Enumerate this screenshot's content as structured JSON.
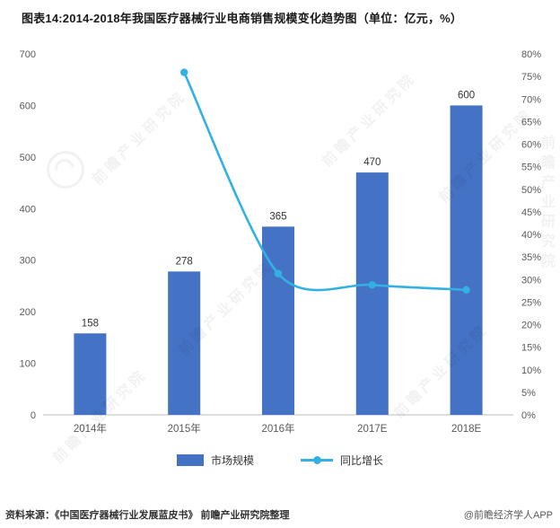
{
  "title": "图表14:2014-2018年我国医疗器械行业电商销售规模变化趋势图（单位：亿元，%）",
  "watermark": {
    "text": "前瞻产业研究院"
  },
  "footer": {
    "source": "资料来源：《中国医疗器械行业发展蓝皮书》  前瞻产业研究院整理",
    "credit": "@前瞻经济学人APP"
  },
  "chart_data": {
    "type": "bar+line combo",
    "categories": [
      "2014年",
      "2015年",
      "2016年",
      "2017E",
      "2018E"
    ],
    "series": [
      {
        "name": "市场规模",
        "type": "bar",
        "axis": "left",
        "unit": "亿元",
        "values": [
          158,
          278,
          365,
          470,
          600
        ],
        "color": "#4472C4"
      },
      {
        "name": "同比增长",
        "type": "line",
        "axis": "right",
        "unit": "%",
        "values": [
          null,
          75.9,
          31.3,
          28.8,
          27.7
        ],
        "color": "#33B1E4"
      }
    ],
    "bar_labels": [
      "158",
      "278",
      "365",
      "470",
      "600"
    ],
    "left_axis": {
      "min": 0,
      "max": 700,
      "step": 100,
      "ticks": [
        "0",
        "100",
        "200",
        "300",
        "400",
        "500",
        "600",
        "700"
      ]
    },
    "right_axis": {
      "min": 0,
      "max": 80,
      "step": 5,
      "ticks": [
        "0%",
        "5%",
        "10%",
        "15%",
        "20%",
        "25%",
        "30%",
        "35%",
        "40%",
        "45%",
        "50%",
        "55%",
        "60%",
        "65%",
        "70%",
        "75%",
        "80%"
      ]
    },
    "grid": false,
    "legend_position": "bottom",
    "legend": [
      {
        "label": "市场规模",
        "marker": "bar"
      },
      {
        "label": "同比增长",
        "marker": "line-dot"
      }
    ]
  }
}
